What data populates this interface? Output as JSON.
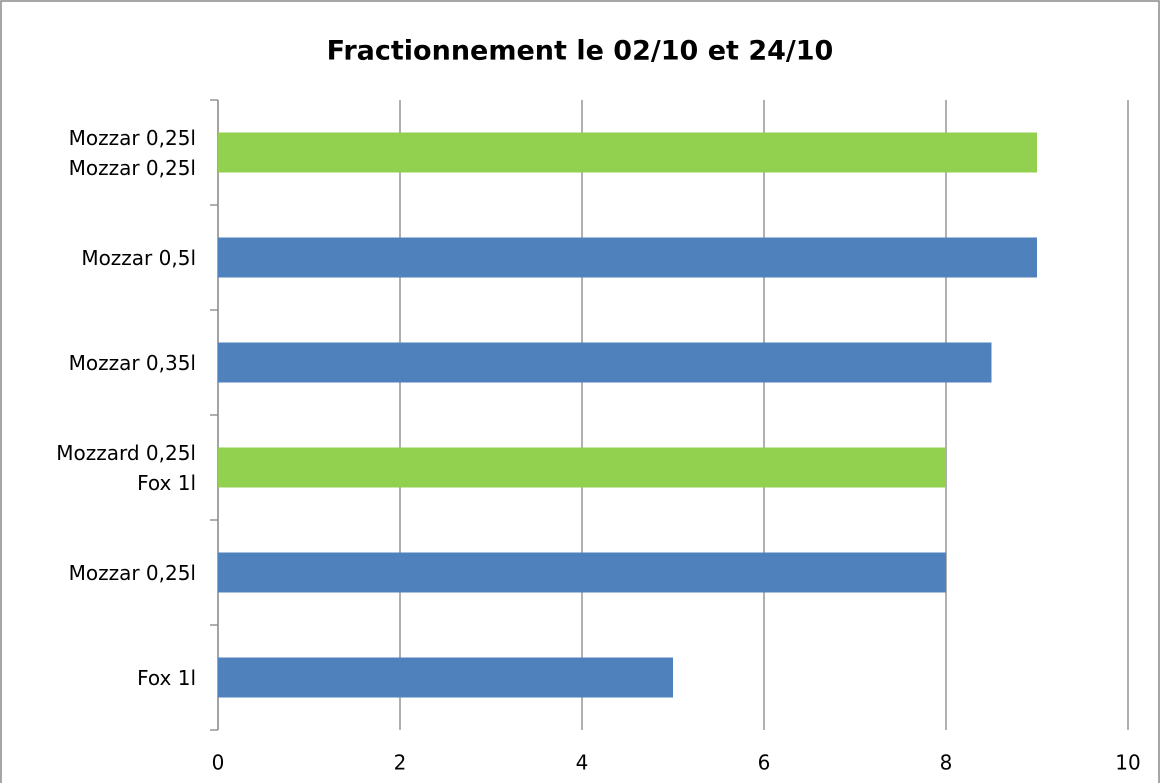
{
  "chart_data": {
    "type": "bar",
    "orientation": "horizontal",
    "title": "Fractionnement le 02/10 et 24/10",
    "categories": [
      "Mozzar 0,25l\nMozzar 0,25l",
      "Mozzar 0,5l",
      "Mozzar 0,35l",
      "Mozzard 0,25l\nFox 1l",
      "Mozzar 0,25l",
      "Fox 1l"
    ],
    "values": [
      9,
      9,
      8.5,
      8,
      8,
      5
    ],
    "colors": [
      "#92d050",
      "#4f81bd",
      "#4f81bd",
      "#92d050",
      "#4f81bd",
      "#4f81bd"
    ],
    "xlim": [
      0,
      10
    ],
    "xticks": [
      0,
      2,
      4,
      6,
      8,
      10
    ],
    "grid": true
  }
}
